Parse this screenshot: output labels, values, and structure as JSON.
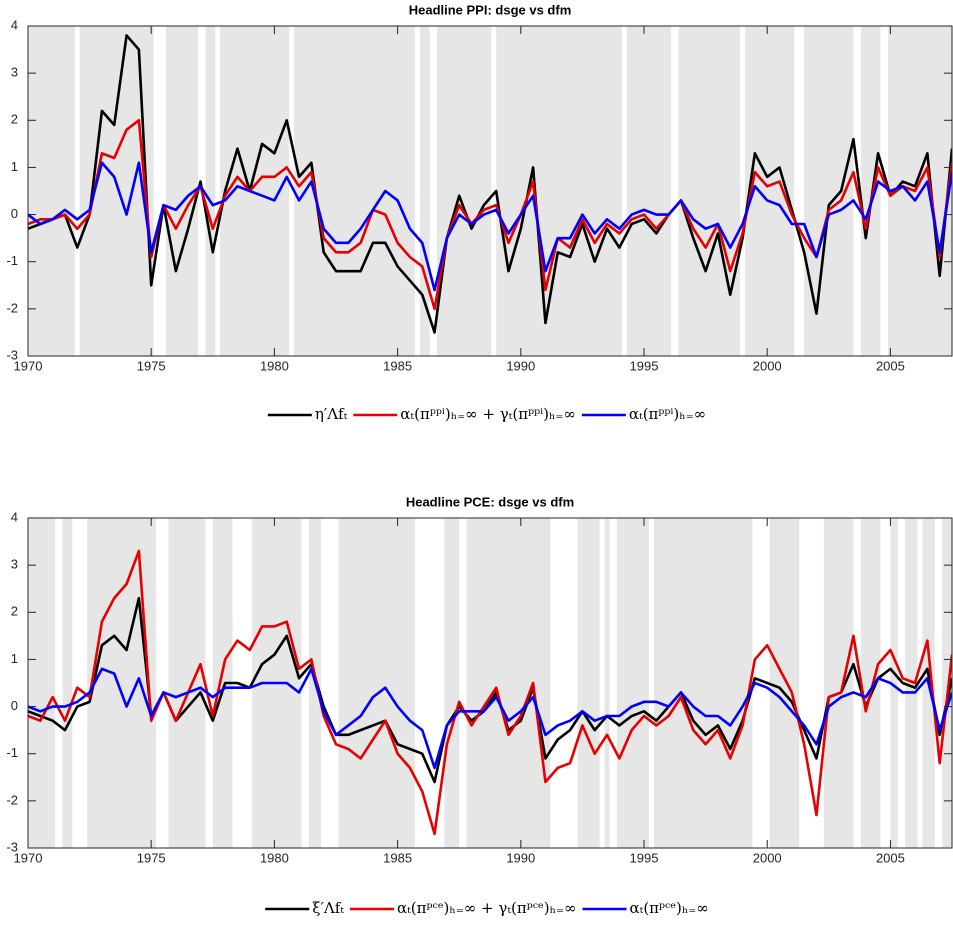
{
  "chart_data": [
    {
      "type": "line",
      "title": "Headline PPI: dsge vs dfm",
      "x": [
        1970,
        1970.5,
        1971,
        1971.5,
        1972,
        1972.5,
        1973,
        1973.5,
        1974,
        1974.5,
        1975,
        1975.5,
        1976,
        1976.5,
        1977,
        1977.5,
        1978,
        1978.5,
        1979,
        1979.5,
        1980,
        1980.5,
        1981,
        1981.5,
        1982,
        1982.5,
        1983,
        1983.5,
        1984,
        1984.5,
        1985,
        1985.5,
        1986,
        1986.5,
        1987,
        1987.5,
        1988,
        1988.5,
        1989,
        1989.5,
        1990,
        1990.5,
        1991,
        1991.5,
        1992,
        1992.5,
        1993,
        1993.5,
        1994,
        1994.5,
        1995,
        1995.5,
        1996,
        1996.5,
        1997,
        1997.5,
        1998,
        1998.5,
        1999,
        1999.5,
        2000,
        2000.5,
        2001,
        2001.5,
        2002,
        2002.5,
        2003,
        2003.5,
        2004,
        2004.5,
        2005,
        2005.5,
        2006,
        2006.5,
        2007,
        2007.5
      ],
      "xlim": [
        1970,
        2007.5
      ],
      "xticks": [
        1970,
        1975,
        1980,
        1985,
        1990,
        1995,
        2000,
        2005
      ],
      "ylim": [
        -3,
        4
      ],
      "yticks": [
        -3,
        -2,
        -1,
        0,
        1,
        2,
        3,
        4
      ],
      "shaded": [
        [
          1970,
          1971.9
        ],
        [
          1972.1,
          1975.1
        ],
        [
          1975.6,
          1976.9
        ],
        [
          1977.2,
          1977.6
        ],
        [
          1977.8,
          1980.6
        ],
        [
          1980.8,
          1985.7
        ],
        [
          1985.9,
          1986.3
        ],
        [
          1986.6,
          1988.8
        ],
        [
          1989,
          1994.1
        ],
        [
          1994.3,
          1996.1
        ],
        [
          1996.4,
          1998.9
        ],
        [
          1999.1,
          2001.1
        ],
        [
          2001.5,
          2003.5
        ],
        [
          2003.8,
          2004.6
        ],
        [
          2004.9,
          2007.5
        ]
      ],
      "shade_color": "#e6e6e6",
      "series": [
        {
          "name": "η′Λfₜ",
          "color": "#000000",
          "values": [
            -0.3,
            -0.2,
            -0.1,
            0.0,
            -0.7,
            0.0,
            2.2,
            1.9,
            3.8,
            3.5,
            -1.5,
            0.2,
            -1.2,
            -0.3,
            0.7,
            -0.8,
            0.5,
            1.4,
            0.5,
            1.5,
            1.3,
            2.0,
            0.8,
            1.1,
            -0.8,
            -1.2,
            -1.2,
            -1.2,
            -0.6,
            -0.6,
            -1.1,
            -1.4,
            -1.7,
            -2.5,
            -0.5,
            0.4,
            -0.3,
            0.2,
            0.5,
            -1.2,
            -0.3,
            1.0,
            -2.3,
            -0.8,
            -0.9,
            -0.2,
            -1.0,
            -0.3,
            -0.7,
            -0.2,
            -0.1,
            -0.4,
            0.0,
            0.3,
            -0.5,
            -1.2,
            -0.4,
            -1.7,
            -0.5,
            1.3,
            0.8,
            1.0,
            0.1,
            -0.8,
            -2.1,
            0.2,
            0.5,
            1.6,
            -0.5,
            1.3,
            0.4,
            0.7,
            0.6,
            1.3,
            -1.3,
            1.4
          ]
        },
        {
          "name": "αₜ(πᵖᵖⁱ)ₕ₌∞ + γₜ(πᵖᵖⁱ)ₕ₌∞",
          "color": "#e60000",
          "values": [
            -0.2,
            -0.1,
            -0.1,
            0.0,
            -0.3,
            0.0,
            1.3,
            1.2,
            1.8,
            2.0,
            -0.9,
            0.2,
            -0.3,
            0.2,
            0.6,
            -0.3,
            0.4,
            0.8,
            0.5,
            0.8,
            0.8,
            1.0,
            0.6,
            0.9,
            -0.5,
            -0.8,
            -0.8,
            -0.6,
            0.1,
            0.0,
            -0.6,
            -0.9,
            -1.1,
            -2.0,
            -0.5,
            0.2,
            -0.2,
            0.1,
            0.2,
            -0.6,
            0.0,
            0.7,
            -1.6,
            -0.5,
            -0.7,
            -0.1,
            -0.6,
            -0.2,
            -0.4,
            -0.1,
            0.0,
            -0.3,
            0.0,
            0.3,
            -0.3,
            -0.7,
            -0.2,
            -1.2,
            -0.4,
            0.9,
            0.6,
            0.7,
            0.0,
            -0.5,
            -0.9,
            0.1,
            0.3,
            0.9,
            -0.3,
            1.0,
            0.4,
            0.6,
            0.5,
            1.0,
            -0.9,
            1.1
          ]
        },
        {
          "name": "αₜ(πᵖᵖⁱ)ₕ₌∞",
          "color": "#0000ff",
          "values": [
            0.0,
            -0.2,
            -0.1,
            0.1,
            -0.1,
            0.1,
            1.1,
            0.8,
            0.0,
            1.1,
            -0.8,
            0.2,
            0.1,
            0.4,
            0.6,
            0.2,
            0.3,
            0.6,
            0.5,
            0.4,
            0.3,
            0.8,
            0.3,
            0.7,
            -0.3,
            -0.6,
            -0.6,
            -0.3,
            0.1,
            0.5,
            0.3,
            -0.3,
            -0.6,
            -1.6,
            -0.5,
            0.0,
            -0.2,
            0.0,
            0.1,
            -0.4,
            0.0,
            0.4,
            -1.2,
            -0.5,
            -0.5,
            0.0,
            -0.4,
            -0.1,
            -0.3,
            0.0,
            0.1,
            0.0,
            0.0,
            0.3,
            -0.1,
            -0.3,
            -0.2,
            -0.7,
            -0.2,
            0.6,
            0.3,
            0.2,
            -0.2,
            -0.2,
            -0.9,
            0.0,
            0.1,
            0.3,
            -0.1,
            0.7,
            0.5,
            0.6,
            0.3,
            0.7,
            -0.8,
            0.9
          ]
        }
      ]
    },
    {
      "type": "line",
      "title": "Headline PCE: dsge vs dfm",
      "x": [
        1970,
        1970.5,
        1971,
        1971.5,
        1972,
        1972.5,
        1973,
        1973.5,
        1974,
        1974.5,
        1975,
        1975.5,
        1976,
        1976.5,
        1977,
        1977.5,
        1978,
        1978.5,
        1979,
        1979.5,
        1980,
        1980.5,
        1981,
        1981.5,
        1982,
        1982.5,
        1983,
        1983.5,
        1984,
        1984.5,
        1985,
        1985.5,
        1986,
        1986.5,
        1987,
        1987.5,
        1988,
        1988.5,
        1989,
        1989.5,
        1990,
        1990.5,
        1991,
        1991.5,
        1992,
        1992.5,
        1993,
        1993.5,
        1994,
        1994.5,
        1995,
        1995.5,
        1996,
        1996.5,
        1997,
        1997.5,
        1998,
        1998.5,
        1999,
        1999.5,
        2000,
        2000.5,
        2001,
        2001.5,
        2002,
        2002.5,
        2003,
        2003.5,
        2004,
        2004.5,
        2005,
        2005.5,
        2006,
        2006.5,
        2007,
        2007.5
      ],
      "xlim": [
        1970,
        2007.5
      ],
      "xticks": [
        1970,
        1975,
        1980,
        1985,
        1990,
        1995,
        2000,
        2005
      ],
      "ylim": [
        -3,
        4
      ],
      "yticks": [
        -3,
        -2,
        -1,
        0,
        1,
        2,
        3,
        4
      ],
      "shaded": [
        [
          1970,
          1971.1
        ],
        [
          1971.4,
          1971.8
        ],
        [
          1972.4,
          1975.2
        ],
        [
          1975.7,
          1977.2
        ],
        [
          1977.5,
          1978.3
        ],
        [
          1979.1,
          1981.1
        ],
        [
          1981.4,
          1981.9
        ],
        [
          1982.6,
          1985.7
        ],
        [
          1986.9,
          1987.5
        ],
        [
          1987.8,
          1991.2
        ],
        [
          1992.3,
          1993.2
        ],
        [
          1993.4,
          1993.6
        ],
        [
          1993.9,
          1995.2
        ],
        [
          1995.4,
          1999.4
        ],
        [
          2000.1,
          2001.3
        ],
        [
          2002.3,
          2003.5
        ],
        [
          2003.8,
          2004.6
        ],
        [
          2005,
          2005.3
        ],
        [
          2005.6,
          2006.1
        ],
        [
          2006.3,
          2006.8
        ],
        [
          2007.1,
          2007.5
        ]
      ],
      "shade_color": "#e6e6e6",
      "series": [
        {
          "name": "ξ′Λfₜ",
          "color": "#000000",
          "values": [
            -0.1,
            -0.2,
            -0.3,
            -0.5,
            0.0,
            0.1,
            1.3,
            1.5,
            1.2,
            2.3,
            -0.2,
            0.3,
            -0.3,
            0.0,
            0.3,
            -0.3,
            0.5,
            0.5,
            0.4,
            0.9,
            1.1,
            1.5,
            0.6,
            0.9,
            0.0,
            -0.6,
            -0.6,
            -0.5,
            -0.4,
            -0.3,
            -0.8,
            -0.9,
            -1.0,
            -1.6,
            -0.4,
            0.0,
            -0.3,
            -0.1,
            0.3,
            -0.5,
            -0.3,
            0.4,
            -1.1,
            -0.7,
            -0.5,
            -0.1,
            -0.5,
            -0.2,
            -0.4,
            -0.2,
            -0.1,
            -0.3,
            0.0,
            0.3,
            -0.3,
            -0.6,
            -0.4,
            -0.9,
            -0.3,
            0.6,
            0.5,
            0.4,
            0.1,
            -0.5,
            -1.1,
            0.2,
            0.3,
            0.9,
            0.0,
            0.6,
            0.8,
            0.5,
            0.4,
            0.8,
            -0.6,
            0.6
          ]
        },
        {
          "name": "αₜ(πᵖᶜᵉ)ₕ₌∞ + γₜ(πᵖᶜᵉ)ₕ₌∞",
          "color": "#e60000",
          "values": [
            -0.2,
            -0.3,
            0.2,
            -0.3,
            0.4,
            0.2,
            1.8,
            2.3,
            2.6,
            3.3,
            -0.3,
            0.3,
            -0.3,
            0.3,
            0.9,
            -0.2,
            1.0,
            1.4,
            1.2,
            1.7,
            1.7,
            1.8,
            0.8,
            1.0,
            -0.2,
            -0.8,
            -0.9,
            -1.1,
            -0.7,
            -0.3,
            -1.0,
            -1.3,
            -1.8,
            -2.7,
            -0.8,
            0.1,
            -0.4,
            0.0,
            0.4,
            -0.6,
            -0.2,
            0.5,
            -1.6,
            -1.3,
            -1.2,
            -0.4,
            -1.0,
            -0.6,
            -1.1,
            -0.5,
            -0.2,
            -0.4,
            -0.2,
            0.2,
            -0.5,
            -0.8,
            -0.5,
            -1.1,
            -0.4,
            1.0,
            1.3,
            0.8,
            0.3,
            -0.8,
            -2.3,
            0.2,
            0.3,
            1.5,
            -0.1,
            0.9,
            1.2,
            0.6,
            0.5,
            1.4,
            -1.2,
            1.1
          ]
        },
        {
          "name": "αₜ(πᵖᶜᵉ)ₕ₌∞",
          "color": "#0000ff",
          "values": [
            0.0,
            -0.1,
            0.0,
            0.0,
            0.1,
            0.3,
            0.8,
            0.7,
            0.0,
            0.6,
            -0.2,
            0.3,
            0.2,
            0.3,
            0.4,
            0.2,
            0.4,
            0.4,
            0.4,
            0.5,
            0.5,
            0.5,
            0.3,
            0.8,
            -0.1,
            -0.6,
            -0.4,
            -0.2,
            0.2,
            0.4,
            0.0,
            -0.3,
            -0.5,
            -1.3,
            -0.4,
            -0.1,
            -0.1,
            -0.1,
            0.2,
            -0.3,
            -0.1,
            0.2,
            -0.6,
            -0.4,
            -0.3,
            -0.1,
            -0.3,
            -0.2,
            -0.2,
            0.0,
            0.1,
            0.1,
            0.0,
            0.3,
            0.0,
            -0.2,
            -0.2,
            -0.4,
            0.0,
            0.5,
            0.4,
            0.2,
            -0.1,
            -0.4,
            -0.8,
            0.0,
            0.2,
            0.3,
            0.2,
            0.6,
            0.5,
            0.3,
            0.3,
            0.6,
            -0.5,
            0.3
          ]
        }
      ]
    }
  ]
}
